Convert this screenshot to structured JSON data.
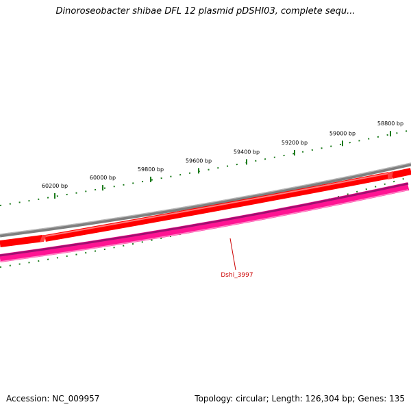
{
  "title": "Dinoroseobacter shibae DFL 12 plasmid pDSHI03, complete sequ...",
  "footer": {
    "accession": "Accession: NC_009957",
    "summary": "Topology: circular; Length: 126,304 bp; Genes: 135"
  },
  "scale_labels": [
    "60200 bp",
    "60000 bp",
    "59800 bp",
    "59600 bp",
    "59400 bp",
    "59200 bp",
    "59000 bp",
    "58800 bp"
  ],
  "gene_label": "Dshi_3997",
  "colors": {
    "backbone": "#7f7f7f",
    "forward_gene": "#ff0000",
    "reverse_gene": "#ff1493",
    "ticks": "#1a7a1a",
    "gene_label": "#cc0000"
  }
}
